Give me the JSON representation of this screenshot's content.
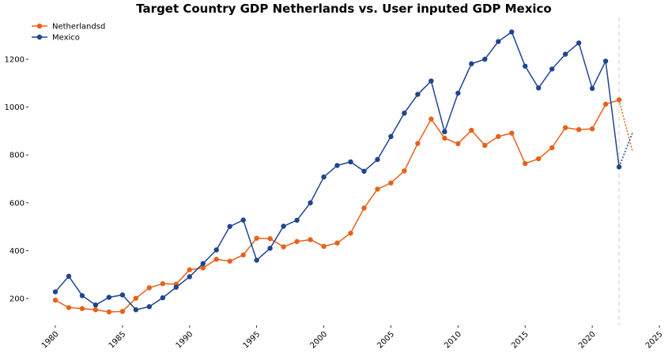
{
  "chart_data": {
    "type": "line",
    "title": "Target Country GDP Netherlands vs. User inputed GDP Mexico",
    "xlabel": "",
    "ylabel": "",
    "xlim": [
      1979,
      2025
    ],
    "ylim": [
      90,
      1350
    ],
    "x_ticks": [
      1980,
      1985,
      1990,
      1995,
      2000,
      2005,
      2010,
      2015,
      2020,
      2025
    ],
    "y_ticks": [
      200,
      400,
      600,
      800,
      1000,
      1200
    ],
    "grid": false,
    "legend_position": "top-left",
    "vline_x": 2022,
    "series": [
      {
        "name": "Netherlandsd",
        "color": "#e8611a",
        "x": [
          1980,
          1981,
          1982,
          1983,
          1984,
          1985,
          1986,
          1987,
          1988,
          1989,
          1990,
          1991,
          1992,
          1993,
          1994,
          1995,
          1996,
          1997,
          1998,
          1999,
          2000,
          2001,
          2002,
          2003,
          2004,
          2005,
          2006,
          2007,
          2008,
          2009,
          2010,
          2011,
          2012,
          2013,
          2014,
          2015,
          2016,
          2017,
          2018,
          2019,
          2020,
          2021,
          2022
        ],
        "values": [
          193,
          162,
          158,
          153,
          144,
          146,
          201,
          245,
          262,
          260,
          320,
          328,
          364,
          356,
          382,
          452,
          450,
          416,
          438,
          446,
          418,
          432,
          473,
          578,
          657,
          683,
          733,
          848,
          950,
          870,
          847,
          903,
          840,
          877,
          891,
          764,
          784,
          830,
          914,
          906,
          909,
          1012,
          1030
        ],
        "forecast": {
          "x": [
            2022,
            2023
          ],
          "values": [
            1030,
            815
          ]
        }
      },
      {
        "name": "Mexico",
        "color": "#1f4591",
        "x": [
          1980,
          1981,
          1982,
          1983,
          1984,
          1985,
          1986,
          1987,
          1988,
          1989,
          1990,
          1991,
          1992,
          1993,
          1994,
          1995,
          1996,
          1997,
          1998,
          1999,
          2000,
          2001,
          2002,
          2003,
          2004,
          2005,
          2006,
          2007,
          2008,
          2009,
          2010,
          2011,
          2012,
          2013,
          2014,
          2015,
          2016,
          2017,
          2018,
          2019,
          2020,
          2021,
          2022
        ],
        "values": [
          228,
          293,
          212,
          173,
          205,
          215,
          153,
          166,
          203,
          247,
          291,
          346,
          403,
          501,
          528,
          360,
          410,
          502,
          527,
          600,
          708,
          756,
          771,
          732,
          781,
          877,
          975,
          1053,
          1109,
          897,
          1058,
          1181,
          1200,
          1274,
          1314,
          1171,
          1080,
          1159,
          1221,
          1268,
          1078,
          1192,
          750
        ],
        "forecast": {
          "x": [
            2022,
            2023
          ],
          "values": [
            750,
            893
          ]
        }
      }
    ]
  }
}
